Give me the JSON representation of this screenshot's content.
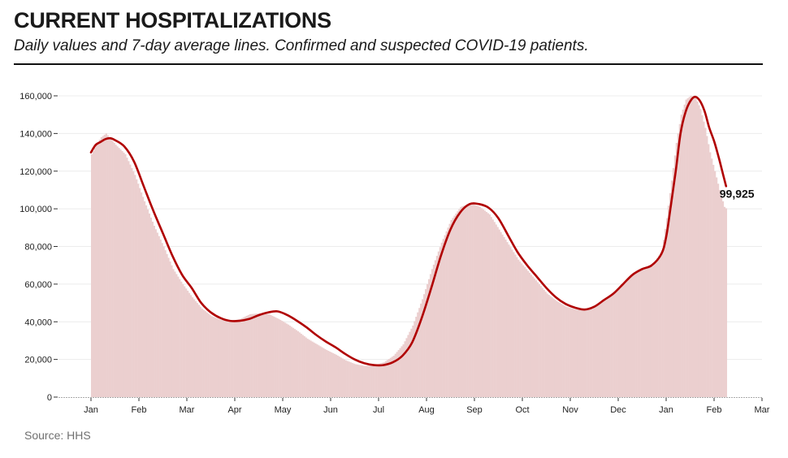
{
  "header": {
    "title": "CURRENT HOSPITALIZATIONS",
    "subtitle": "Daily values and 7-day average lines. Confirmed and suspected COVID-19 patients."
  },
  "source": "Source: HHS",
  "colors": {
    "area": "#ebcfcf",
    "line": "#b00000",
    "grid": "#ececec"
  },
  "chart_data": {
    "type": "area",
    "title": "CURRENT HOSPITALIZATIONS",
    "subtitle": "Daily values and 7-day average lines. Confirmed and suspected COVID-19 patients.",
    "xlabel": "",
    "ylabel": "",
    "ylim": [
      0,
      160000
    ],
    "grid": true,
    "y_ticks": [
      {
        "value": 0,
        "label": "0"
      },
      {
        "value": 20000,
        "label": "20,000"
      },
      {
        "value": 40000,
        "label": "40,000"
      },
      {
        "value": 60000,
        "label": "60,000"
      },
      {
        "value": 80000,
        "label": "80,000"
      },
      {
        "value": 100000,
        "label": "100,000"
      },
      {
        "value": 120000,
        "label": "120,000"
      },
      {
        "value": 140000,
        "label": "140,000"
      },
      {
        "value": 160000,
        "label": "160,000"
      }
    ],
    "x_ticks": [
      {
        "month_index": 0,
        "label": "Jan"
      },
      {
        "month_index": 1,
        "label": "Feb"
      },
      {
        "month_index": 2,
        "label": "Mar"
      },
      {
        "month_index": 3,
        "label": "Apr"
      },
      {
        "month_index": 4,
        "label": "May"
      },
      {
        "month_index": 5,
        "label": "Jun"
      },
      {
        "month_index": 6,
        "label": "Jul"
      },
      {
        "month_index": 7,
        "label": "Aug"
      },
      {
        "month_index": 8,
        "label": "Sep"
      },
      {
        "month_index": 9,
        "label": "Oct"
      },
      {
        "month_index": 10,
        "label": "Nov"
      },
      {
        "month_index": 11,
        "label": "Dec"
      },
      {
        "month_index": 12,
        "label": "Jan"
      },
      {
        "month_index": 13,
        "label": "Feb"
      },
      {
        "month_index": 14,
        "label": "Mar"
      }
    ],
    "xlim_months": [
      0,
      14
    ],
    "series": [
      {
        "name": "Daily values",
        "kind": "area",
        "x_months": [
          0,
          0.1,
          0.2,
          0.3,
          0.4,
          0.5,
          0.7,
          0.9,
          1.1,
          1.3,
          1.5,
          1.7,
          1.9,
          2.1,
          2.3,
          2.5,
          2.7,
          2.9,
          3.1,
          3.3,
          3.5,
          3.7,
          3.9,
          4.1,
          4.3,
          4.5,
          4.7,
          4.9,
          5.1,
          5.3,
          5.5,
          5.7,
          5.9,
          6.1,
          6.3,
          6.5,
          6.7,
          6.9,
          7.1,
          7.3,
          7.5,
          7.7,
          7.9,
          8.1,
          8.3,
          8.5,
          8.7,
          8.9,
          9.1,
          9.3,
          9.5,
          9.7,
          9.9,
          10.1,
          10.3,
          10.5,
          10.7,
          10.9,
          11.1,
          11.3,
          11.5,
          11.7,
          11.9,
          12.0,
          12.1,
          12.2,
          12.3,
          12.4,
          12.5,
          12.6,
          12.7,
          12.8,
          12.9,
          13.0,
          13.1,
          13.2,
          13.25
        ],
        "values": [
          129000,
          134000,
          138000,
          140000,
          137000,
          134000,
          129000,
          118000,
          104000,
          91000,
          80000,
          68000,
          60000,
          53000,
          47000,
          43000,
          41000,
          40500,
          41500,
          44000,
          44500,
          44000,
          41500,
          38500,
          35000,
          31000,
          28000,
          25000,
          22500,
          19500,
          17500,
          16500,
          17000,
          18500,
          22000,
          28000,
          38000,
          52000,
          68000,
          82000,
          94000,
          101000,
          103000,
          101000,
          97000,
          89000,
          81000,
          73000,
          67000,
          61000,
          55000,
          51000,
          48000,
          46500,
          46500,
          48500,
          51500,
          55000,
          60000,
          65000,
          68000,
          69500,
          78000,
          95000,
          115000,
          135000,
          150000,
          158000,
          160000,
          159000,
          153000,
          143000,
          130000,
          120000,
          110000,
          101000,
          99925
        ]
      },
      {
        "name": "7-day average",
        "kind": "line",
        "x_months": [
          0,
          0.1,
          0.2,
          0.3,
          0.4,
          0.5,
          0.7,
          0.9,
          1.1,
          1.3,
          1.5,
          1.7,
          1.9,
          2.1,
          2.3,
          2.5,
          2.7,
          2.9,
          3.1,
          3.3,
          3.5,
          3.7,
          3.9,
          4.1,
          4.3,
          4.5,
          4.7,
          4.9,
          5.1,
          5.3,
          5.5,
          5.7,
          5.9,
          6.1,
          6.3,
          6.5,
          6.7,
          6.9,
          7.1,
          7.3,
          7.5,
          7.7,
          7.9,
          8.1,
          8.3,
          8.5,
          8.7,
          8.9,
          9.1,
          9.3,
          9.5,
          9.7,
          9.9,
          10.1,
          10.3,
          10.5,
          10.7,
          10.9,
          11.1,
          11.3,
          11.5,
          11.7,
          11.9,
          12.0,
          12.1,
          12.2,
          12.3,
          12.4,
          12.5,
          12.6,
          12.7,
          12.8,
          12.9,
          13.0,
          13.1,
          13.2,
          13.25
        ],
        "values": [
          130000,
          134000,
          135500,
          137000,
          137500,
          136500,
          133000,
          125000,
          112000,
          99000,
          87000,
          75000,
          65000,
          58000,
          50000,
          45000,
          42000,
          40500,
          40500,
          41500,
          43500,
          45000,
          45500,
          43500,
          40500,
          37000,
          33000,
          29500,
          26500,
          23000,
          20000,
          18000,
          17000,
          17000,
          18500,
          22000,
          29000,
          42000,
          58000,
          75000,
          89000,
          98000,
          102500,
          102500,
          100500,
          95000,
          86000,
          77000,
          70000,
          64000,
          58000,
          53000,
          49500,
          47500,
          46500,
          48000,
          51500,
          55000,
          60000,
          65000,
          68000,
          70000,
          76000,
          85000,
          102000,
          120000,
          140000,
          151000,
          157000,
          159500,
          157500,
          152000,
          143000,
          136000,
          127000,
          117000,
          112000
        ]
      }
    ],
    "annotations": [
      {
        "text": "99,925",
        "target": "last daily value"
      }
    ]
  }
}
